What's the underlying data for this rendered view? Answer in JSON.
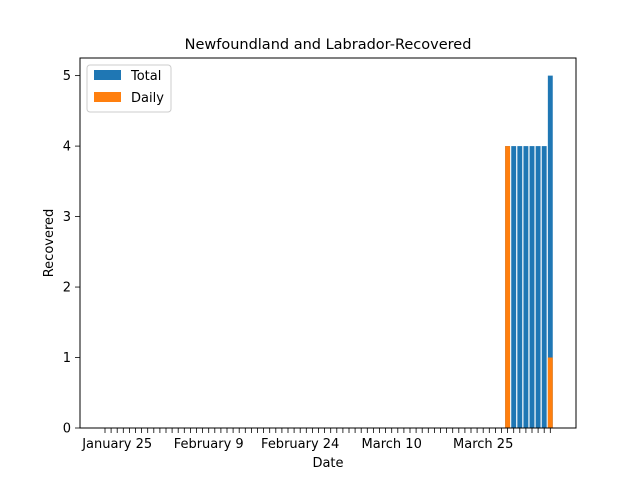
{
  "chart_data": {
    "type": "bar",
    "title": "Newfoundland and Labrador-Recovered",
    "xlabel": "Date",
    "ylabel": "Recovered",
    "x_tick_labels": [
      "January 25",
      "February 9",
      "February 24",
      "March 10",
      "March 25"
    ],
    "y_ticks": [
      0,
      1,
      2,
      3,
      4,
      5
    ],
    "ylim": [
      0,
      5.25
    ],
    "grid": false,
    "legend_position": "top-left",
    "dates": [
      "January 23",
      "January 24",
      "January 25",
      "January 26",
      "January 27",
      "January 28",
      "January 29",
      "January 30",
      "January 31",
      "February 1",
      "February 2",
      "February 3",
      "February 4",
      "February 5",
      "February 6",
      "February 7",
      "February 8",
      "February 9",
      "February 10",
      "February 11",
      "February 12",
      "February 13",
      "February 14",
      "February 15",
      "February 16",
      "February 17",
      "February 18",
      "February 19",
      "February 20",
      "February 21",
      "February 22",
      "February 23",
      "February 24",
      "February 25",
      "February 26",
      "February 27",
      "February 28",
      "February 29",
      "March 1",
      "March 2",
      "March 3",
      "March 4",
      "March 5",
      "March 6",
      "March 7",
      "March 8",
      "March 9",
      "March 10",
      "March 11",
      "March 12",
      "March 13",
      "March 14",
      "March 15",
      "March 16",
      "March 17",
      "March 18",
      "March 19",
      "March 20",
      "March 21",
      "March 22",
      "March 23",
      "March 24",
      "March 25",
      "March 26",
      "March 27",
      "March 28",
      "March 29",
      "March 30",
      "March 31",
      "April 1",
      "April 2",
      "April 3",
      "April 4",
      "April 5"
    ],
    "series": [
      {
        "name": "Total",
        "color": "#1f77b4",
        "values": [
          0,
          0,
          0,
          0,
          0,
          0,
          0,
          0,
          0,
          0,
          0,
          0,
          0,
          0,
          0,
          0,
          0,
          0,
          0,
          0,
          0,
          0,
          0,
          0,
          0,
          0,
          0,
          0,
          0,
          0,
          0,
          0,
          0,
          0,
          0,
          0,
          0,
          0,
          0,
          0,
          0,
          0,
          0,
          0,
          0,
          0,
          0,
          0,
          0,
          0,
          0,
          0,
          0,
          0,
          0,
          0,
          0,
          0,
          0,
          0,
          0,
          0,
          0,
          0,
          0,
          0,
          4,
          4,
          4,
          4,
          4,
          4,
          4,
          5
        ]
      },
      {
        "name": "Daily",
        "color": "#ff7f0e",
        "values": [
          0,
          0,
          0,
          0,
          0,
          0,
          0,
          0,
          0,
          0,
          0,
          0,
          0,
          0,
          0,
          0,
          0,
          0,
          0,
          0,
          0,
          0,
          0,
          0,
          0,
          0,
          0,
          0,
          0,
          0,
          0,
          0,
          0,
          0,
          0,
          0,
          0,
          0,
          0,
          0,
          0,
          0,
          0,
          0,
          0,
          0,
          0,
          0,
          0,
          0,
          0,
          0,
          0,
          0,
          0,
          0,
          0,
          0,
          0,
          0,
          0,
          0,
          0,
          0,
          0,
          0,
          4,
          0,
          0,
          0,
          0,
          0,
          0,
          1
        ]
      }
    ]
  }
}
